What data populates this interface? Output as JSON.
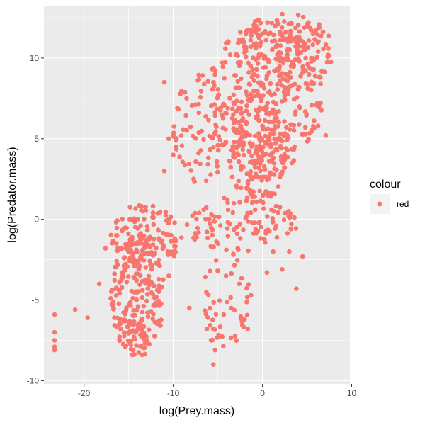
{
  "chart_data": {
    "type": "scatter",
    "xlabel": "log(Prey.mass)",
    "ylabel": "log(Predator.mass)",
    "xlim": [
      -24.5,
      9.8
    ],
    "ylim": [
      -10.2,
      13.2
    ],
    "x_ticks": [
      -20,
      -10,
      0,
      10
    ],
    "x_tick_labels": [
      "-20",
      "-10",
      "0",
      "10"
    ],
    "y_ticks": [
      -10,
      -5,
      0,
      5,
      10
    ],
    "y_tick_labels": [
      "-10",
      "-5",
      "0",
      "5",
      "10"
    ],
    "grid": true,
    "legend": {
      "title": "colour",
      "placement": "right",
      "entries": [
        {
          "label": "red",
          "color": "#F8766D"
        }
      ]
    },
    "point_color": "#F8766D",
    "density_regions": [
      {
        "x": [
          -17,
          -11
        ],
        "y": [
          -8.5,
          -1
        ],
        "weight": 0.9
      },
      {
        "x": [
          -17,
          -9
        ],
        "y": [
          -3,
          1
        ],
        "weight": 0.5
      },
      {
        "x": [
          -9,
          4
        ],
        "y": [
          -2,
          1.5
        ],
        "weight": 0.4
      },
      {
        "x": [
          -7,
          -1
        ],
        "y": [
          -8.5,
          -2
        ],
        "weight": 0.2
      },
      {
        "x": [
          -4,
          3
        ],
        "y": [
          1,
          8
        ],
        "weight": 0.8
      },
      {
        "x": [
          -6,
          7
        ],
        "y": [
          3,
          12.5
        ],
        "weight": 1.0
      },
      {
        "x": [
          -3,
          8
        ],
        "y": [
          8,
          12.8
        ],
        "weight": 0.6
      },
      {
        "x": [
          -10,
          -4
        ],
        "y": [
          2,
          9
        ],
        "weight": 0.3
      }
    ],
    "outlier_points": [
      [
        -23.3,
        -5.9
      ],
      [
        -23.3,
        -7.0
      ],
      [
        -23.3,
        -7.5
      ],
      [
        -23.3,
        -7.9
      ],
      [
        -23.3,
        -8.1
      ],
      [
        -21.0,
        -5.6
      ],
      [
        -19.6,
        -6.1
      ],
      [
        -17.6,
        -1.8
      ],
      [
        -18.3,
        -4.0
      ],
      [
        -17.0,
        -4.9
      ],
      [
        -11.0,
        8.5
      ],
      [
        -10.5,
        5.0
      ],
      [
        -10.0,
        4.0
      ],
      [
        -11.0,
        3.0
      ],
      [
        -8.5,
        7.5
      ],
      [
        -5.5,
        -9.0
      ],
      [
        -5.3,
        -8.1
      ],
      [
        -3.5,
        -5.5
      ],
      [
        0.5,
        -3.3
      ],
      [
        2.2,
        -3.1
      ],
      [
        3.8,
        -4.3
      ],
      [
        4.5,
        -2.3
      ],
      [
        1.2,
        -2.0
      ],
      [
        6.5,
        8.8
      ],
      [
        7.1,
        5.2
      ],
      [
        -8.2,
        -5.5
      ],
      [
        -13.5,
        -8.4
      ],
      [
        -10.5,
        -3.5
      ],
      [
        -2.0,
        -6.2
      ],
      [
        3.0,
        -2.0
      ]
    ]
  }
}
